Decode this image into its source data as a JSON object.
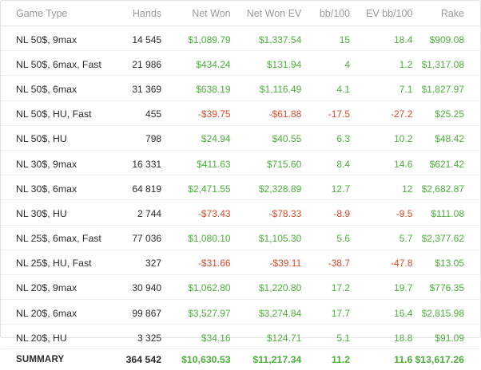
{
  "headers": {
    "game_type": "Game Type",
    "hands": "Hands",
    "net_won": "Net Won",
    "net_won_ev": "Net Won  EV",
    "bb100": "bb/100",
    "ev_bb100": "EV bb/100",
    "rake": "Rake"
  },
  "rows": [
    {
      "game": "NL 50$, 9max",
      "hands": "14 545",
      "net_won": "$1,089.79",
      "net_won_ev": "$1,337.54",
      "bb100": "15",
      "ev_bb100": "18.4",
      "rake": "$909.08"
    },
    {
      "game": "NL 50$, 6max, Fast",
      "hands": "21 986",
      "net_won": "$434.24",
      "net_won_ev": "$131.94",
      "bb100": "4",
      "ev_bb100": "1.2",
      "rake": "$1,317.08"
    },
    {
      "game": "NL 50$, 6max",
      "hands": "31 369",
      "net_won": "$638.19",
      "net_won_ev": "$1,116.49",
      "bb100": "4.1",
      "ev_bb100": "7.1",
      "rake": "$1,827.97"
    },
    {
      "game": "NL 50$, HU, Fast",
      "hands": "455",
      "net_won": "-$39.75",
      "net_won_ev": "-$61.88",
      "bb100": "-17.5",
      "ev_bb100": "-27.2",
      "rake": "$25.25"
    },
    {
      "game": "NL 50$, HU",
      "hands": "798",
      "net_won": "$24.94",
      "net_won_ev": "$40.55",
      "bb100": "6.3",
      "ev_bb100": "10.2",
      "rake": "$48.42"
    },
    {
      "game": "NL 30$, 9max",
      "hands": "16 331",
      "net_won": "$411.63",
      "net_won_ev": "$715.60",
      "bb100": "8.4",
      "ev_bb100": "14.6",
      "rake": "$621.42"
    },
    {
      "game": "NL 30$, 6max",
      "hands": "64 819",
      "net_won": "$2,471.55",
      "net_won_ev": "$2,328.89",
      "bb100": "12.7",
      "ev_bb100": "12",
      "rake": "$2,682.87"
    },
    {
      "game": "NL 30$, HU",
      "hands": "2 744",
      "net_won": "-$73.43",
      "net_won_ev": "-$78.33",
      "bb100": "-8.9",
      "ev_bb100": "-9.5",
      "rake": "$111.08"
    },
    {
      "game": "NL 25$, 6max, Fast",
      "hands": "77 036",
      "net_won": "$1,080.10",
      "net_won_ev": "$1,105.30",
      "bb100": "5.6",
      "ev_bb100": "5.7",
      "rake": "$2,377.62"
    },
    {
      "game": "NL 25$, HU, Fast",
      "hands": "327",
      "net_won": "-$31.66",
      "net_won_ev": "-$39.11",
      "bb100": "-38.7",
      "ev_bb100": "-47.8",
      "rake": "$13.05"
    },
    {
      "game": "NL 20$, 9max",
      "hands": "30 940",
      "net_won": "$1,062.80",
      "net_won_ev": "$1,220.80",
      "bb100": "17.2",
      "ev_bb100": "19.7",
      "rake": "$776.35"
    },
    {
      "game": "NL 20$, 6max",
      "hands": "99 867",
      "net_won": "$3,527.97",
      "net_won_ev": "$3,274.84",
      "bb100": "17.7",
      "ev_bb100": "16.4",
      "rake": "$2,815.98"
    },
    {
      "game": "NL 20$, HU",
      "hands": "3 325",
      "net_won": "$34.16",
      "net_won_ev": "$124.71",
      "bb100": "5.1",
      "ev_bb100": "18.8",
      "rake": "$91.09"
    }
  ],
  "summary": {
    "label": "SUMMARY",
    "hands": "364 542",
    "net_won": "$10,630.53",
    "net_won_ev": "$11,217.34",
    "bb100": "11.2",
    "ev_bb100": "11.6",
    "rake": "$13,617.26"
  },
  "colors": {
    "positive": "#4caf3a",
    "negative": "#dd4a2a",
    "header_text": "#9a9a9a"
  }
}
